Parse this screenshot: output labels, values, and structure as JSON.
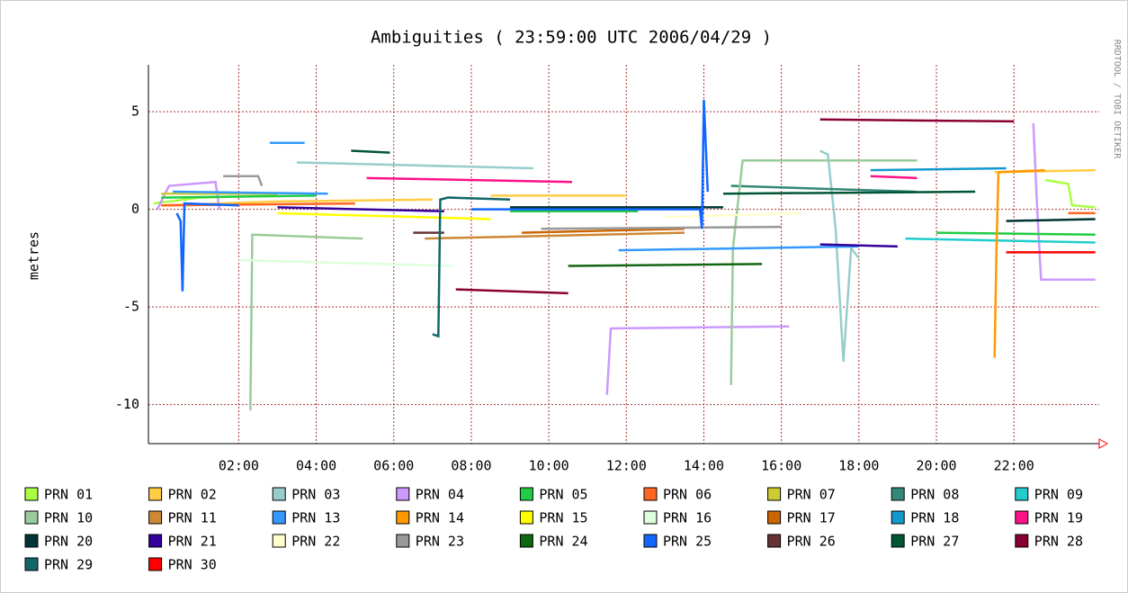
{
  "chart_data": {
    "type": "line",
    "title": "Ambiguities ( 23:59:00 UTC 2006/04/29 )",
    "y_label": "metres",
    "side_label": "RRDTOOL / TOBI OETIKER",
    "xlim": [
      -0.33,
      24.2
    ],
    "xticks": [
      {
        "value": 2,
        "label": "02:00"
      },
      {
        "value": 4,
        "label": "04:00"
      },
      {
        "value": 6,
        "label": "06:00"
      },
      {
        "value": 8,
        "label": "08:00"
      },
      {
        "value": 10,
        "label": "10:00"
      },
      {
        "value": 12,
        "label": "12:00"
      },
      {
        "value": 14,
        "label": "14:00"
      },
      {
        "value": 16,
        "label": "16:00"
      },
      {
        "value": 18,
        "label": "18:00"
      },
      {
        "value": 20,
        "label": "20:00"
      },
      {
        "value": 22,
        "label": "22:00"
      }
    ],
    "ylim": [
      -12,
      7.4
    ],
    "yticks": [
      -10,
      -5,
      0,
      5
    ],
    "grid": true,
    "series": [
      {
        "name": "PRN 01",
        "color": "#aaff44",
        "x": [
          -0.2,
          1,
          3,
          null,
          22.8,
          23.4,
          23.5,
          24.1
        ],
        "values": [
          0.3,
          0.6,
          0.7,
          null,
          1.5,
          1.3,
          0.2,
          0.1
        ]
      },
      {
        "name": "PRN 02",
        "color": "#ffcc44",
        "x": [
          0,
          3,
          7,
          null,
          8.5,
          12,
          null,
          21.5,
          24.1
        ],
        "values": [
          0.2,
          0.4,
          0.5,
          null,
          0.7,
          0.7,
          null,
          1.9,
          2.0
        ]
      },
      {
        "name": "PRN 03",
        "color": "#99cccc",
        "x": [
          3.5,
          9.6,
          null,
          17,
          17.2,
          17.4,
          17.6,
          17.8,
          18
        ],
        "values": [
          2.4,
          2.1,
          null,
          3.0,
          2.8,
          -1,
          -7.8,
          -2,
          -2.5
        ]
      },
      {
        "name": "PRN 04",
        "color": "#cc99ff",
        "x": [
          -0.1,
          0.2,
          1.4,
          1.5,
          null,
          11.5,
          11.6,
          16.2,
          null,
          22.5,
          22.6,
          22.7,
          24.1
        ],
        "values": [
          0,
          1.2,
          1.4,
          0,
          null,
          -9.5,
          -6.1,
          -6.0,
          null,
          4.4,
          0,
          -3.6,
          -3.6
        ]
      },
      {
        "name": "PRN 05",
        "color": "#22cc44",
        "x": [
          0,
          4,
          null,
          9,
          12.3,
          null,
          20,
          24.1
        ],
        "values": [
          0.6,
          0.7,
          null,
          -0.1,
          -0.1,
          null,
          -1.2,
          -1.3
        ]
      },
      {
        "name": "PRN 06",
        "color": "#ff6622",
        "x": [
          0,
          5,
          null,
          23.4,
          24.1
        ],
        "values": [
          0.2,
          0.3,
          null,
          -0.2,
          -0.2
        ]
      },
      {
        "name": "PRN 07",
        "color": "#cccc33",
        "x": [
          0,
          3
        ],
        "values": [
          0.8,
          0.8
        ]
      },
      {
        "name": "PRN 08",
        "color": "#338877",
        "x": [
          14.7,
          19.5
        ],
        "values": [
          1.2,
          0.9
        ]
      },
      {
        "name": "PRN 09",
        "color": "#22cccc",
        "x": [
          19.2,
          24.1
        ],
        "values": [
          -1.5,
          -1.7
        ]
      },
      {
        "name": "PRN 10",
        "color": "#99cc99",
        "x": [
          2.3,
          2.35,
          5.2,
          null,
          14.7,
          14.75,
          15,
          19.5
        ],
        "values": [
          -10.3,
          -1.3,
          -1.5,
          null,
          -9,
          -2,
          2.5,
          2.5
        ]
      },
      {
        "name": "PRN 11",
        "color": "#cc8833",
        "x": [
          6.8,
          13.5
        ],
        "values": [
          -1.5,
          -1.2
        ]
      },
      {
        "name": "PRN 13",
        "color": "#3399ff",
        "x": [
          0.3,
          4.3,
          null,
          2.8,
          3.7,
          null,
          11.8,
          18
        ],
        "values": [
          0.9,
          0.8,
          null,
          3.4,
          3.4,
          null,
          -2.1,
          -1.9
        ]
      },
      {
        "name": "PRN 14",
        "color": "#ff9900",
        "x": [
          21.5,
          21.55,
          21.6,
          22.8
        ],
        "values": [
          -7.6,
          -2,
          1.9,
          2
        ]
      },
      {
        "name": "PRN 15",
        "color": "#ffff00",
        "x": [
          3,
          8.5
        ],
        "values": [
          -0.2,
          -0.5
        ]
      },
      {
        "name": "PRN 16",
        "color": "#ddffdd",
        "x": [
          2,
          7.5
        ],
        "values": [
          -2.6,
          -2.9
        ]
      },
      {
        "name": "PRN 17",
        "color": "#cc6600",
        "x": [
          9.3,
          13.5
        ],
        "values": [
          -1.2,
          -1.0
        ]
      },
      {
        "name": "PRN 18",
        "color": "#1199cc",
        "x": [
          18.3,
          21.8
        ],
        "values": [
          2.0,
          2.1
        ]
      },
      {
        "name": "PRN 19",
        "color": "#ff1188",
        "x": [
          5.3,
          10.6,
          null,
          18.3,
          19.5
        ],
        "values": [
          1.6,
          1.4,
          null,
          1.7,
          1.6
        ]
      },
      {
        "name": "PRN 20",
        "color": "#003333",
        "x": [
          9,
          14.5,
          null,
          21.8,
          24.1
        ],
        "values": [
          0.1,
          0.1,
          null,
          -0.6,
          -0.5
        ]
      },
      {
        "name": "PRN 21",
        "color": "#330099",
        "x": [
          3,
          7.3,
          null,
          17,
          19
        ],
        "values": [
          0.1,
          -0.1,
          null,
          -1.8,
          -1.9
        ]
      },
      {
        "name": "PRN 22",
        "color": "#ffffcc",
        "x": [
          13,
          16.5
        ],
        "values": [
          -0.4,
          -0.2
        ]
      },
      {
        "name": "PRN 23",
        "color": "#999999",
        "x": [
          1.6,
          2.5,
          2.6,
          null,
          9.8,
          16
        ],
        "values": [
          1.7,
          1.7,
          1.2,
          null,
          -1,
          -0.9
        ]
      },
      {
        "name": "PRN 24",
        "color": "#116611",
        "x": [
          10.5,
          15.5
        ],
        "values": [
          -2.9,
          -2.8
        ]
      },
      {
        "name": "PRN 25",
        "color": "#1166ff",
        "x": [
          0.4,
          0.5,
          0.55,
          0.6,
          2,
          null,
          8,
          13.9,
          13.95,
          14,
          14.1
        ],
        "values": [
          -0.2,
          -0.6,
          -4.2,
          0.3,
          0.2,
          null,
          0,
          0,
          -1,
          5.6,
          0.9
        ]
      },
      {
        "name": "PRN 26",
        "color": "#663333",
        "x": [
          6.5,
          7.3
        ],
        "values": [
          -1.2,
          -1.2
        ]
      },
      {
        "name": "PRN 27",
        "color": "#005533",
        "x": [
          4.9,
          5.9,
          null,
          14.5,
          21
        ],
        "values": [
          3.0,
          2.9,
          null,
          0.8,
          0.9
        ]
      },
      {
        "name": "PRN 28",
        "color": "#880033",
        "x": [
          7.6,
          10.5,
          null,
          17,
          22
        ],
        "values": [
          -4.1,
          -4.3,
          null,
          4.6,
          4.5
        ]
      },
      {
        "name": "PRN 29",
        "color": "#116666",
        "x": [
          7,
          7.15,
          7.2,
          7.4,
          9
        ],
        "values": [
          -6.4,
          -6.5,
          0.5,
          0.6,
          0.5
        ]
      },
      {
        "name": "PRN 30",
        "color": "#ff0000",
        "x": [
          21.8,
          24.1
        ],
        "values": [
          -2.2,
          -2.2
        ]
      }
    ]
  }
}
